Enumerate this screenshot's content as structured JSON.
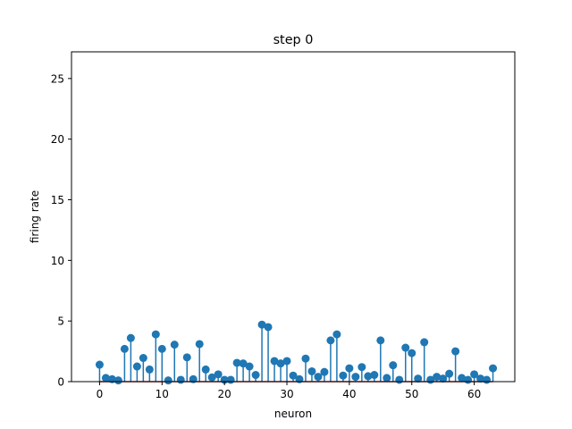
{
  "chart_data": {
    "type": "stem",
    "title": "step 0",
    "xlabel": "neuron",
    "ylabel": "firing rate",
    "xlim": [
      -4.5,
      66.5
    ],
    "ylim": [
      0,
      27.2
    ],
    "xticks": [
      0,
      10,
      20,
      30,
      40,
      50,
      60
    ],
    "yticks": [
      0,
      5,
      10,
      15,
      20,
      25
    ],
    "grid": false,
    "series": [
      {
        "x": [
          0,
          1,
          2,
          3,
          4,
          5,
          6,
          7,
          8,
          9,
          10,
          11,
          12,
          13,
          14,
          15,
          16,
          17,
          18,
          19,
          20,
          21,
          22,
          23,
          24,
          25,
          26,
          27,
          28,
          29,
          30,
          31,
          32,
          33,
          34,
          35,
          36,
          37,
          38,
          39,
          40,
          41,
          42,
          43,
          44,
          45,
          46,
          47,
          48,
          49,
          50,
          51,
          52,
          53,
          54,
          55,
          56,
          57,
          58,
          59,
          60,
          61,
          62,
          63
        ],
        "values": [
          1.4,
          0.3,
          0.2,
          0.1,
          2.7,
          3.6,
          1.25,
          1.95,
          1.0,
          3.9,
          2.7,
          0.1,
          3.05,
          0.15,
          2.0,
          0.2,
          3.1,
          1.0,
          0.35,
          0.6,
          0.15,
          0.15,
          1.55,
          1.5,
          1.25,
          0.55,
          4.7,
          4.5,
          1.7,
          1.5,
          1.7,
          0.5,
          0.2,
          1.9,
          0.85,
          0.4,
          0.8,
          3.4,
          3.9,
          0.5,
          1.1,
          0.4,
          1.2,
          0.45,
          0.55,
          3.4,
          0.3,
          1.35,
          0.15,
          2.8,
          2.35,
          0.25,
          3.25,
          0.15,
          0.4,
          0.25,
          0.65,
          2.5,
          0.3,
          0.15,
          0.6,
          0.25,
          0.15,
          1.1
        ]
      }
    ],
    "colors": {
      "marker": "#1f77b4",
      "stem": "#1f77b4",
      "baseline": "#d62728",
      "axes": "#000000"
    }
  }
}
